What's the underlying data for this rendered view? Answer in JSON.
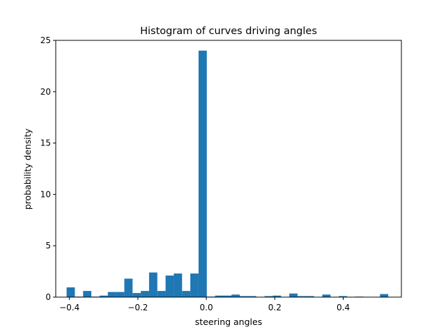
{
  "chart_data": {
    "type": "bar",
    "title": "Histogram of curves driving angles",
    "xlabel": "steering angles",
    "ylabel": "probability density",
    "xlim": [
      -0.44,
      0.57
    ],
    "ylim": [
      0,
      25
    ],
    "xticks": [
      -0.4,
      -0.2,
      0.0,
      0.2,
      0.4
    ],
    "xtick_labels": [
      "−0.4",
      "−0.2",
      "0.0",
      "0.2",
      "0.4"
    ],
    "yticks": [
      0,
      5,
      10,
      15,
      20,
      25
    ],
    "ytick_labels": [
      "0",
      "5",
      "10",
      "15",
      "20",
      "25"
    ],
    "grid": false,
    "color": "#1f77b4",
    "bin_edges": [
      -0.4083,
      -0.3842,
      -0.3601,
      -0.336,
      -0.3119,
      -0.2878,
      -0.2637,
      -0.2396,
      -0.2155,
      -0.1914,
      -0.1673,
      -0.1432,
      -0.1191,
      -0.095,
      -0.0709,
      -0.0468,
      -0.0227,
      0.0014,
      0.0255,
      0.0496,
      0.0737,
      0.0978,
      0.1219,
      0.146,
      0.1701,
      0.1942,
      0.2183,
      0.2424,
      0.2665,
      0.2906,
      0.3147,
      0.3388,
      0.3629,
      0.387,
      0.4111,
      0.4352,
      0.4593,
      0.4834,
      0.5075,
      0.5316
    ],
    "values": [
      0.95,
      0.05,
      0.6,
      0.05,
      0.15,
      0.5,
      0.5,
      1.8,
      0.4,
      0.6,
      2.4,
      0.6,
      2.1,
      2.3,
      0.6,
      2.3,
      24.0,
      0.05,
      0.15,
      0.15,
      0.25,
      0.1,
      0.1,
      0.0,
      0.1,
      0.15,
      0.0,
      0.35,
      0.1,
      0.1,
      0.0,
      0.25,
      0.0,
      0.1,
      0.0,
      0.05,
      0.0,
      0.0,
      0.3
    ]
  }
}
